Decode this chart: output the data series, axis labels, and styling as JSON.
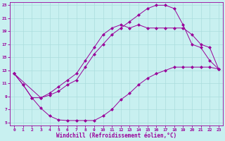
{
  "xlabel": "Windchill (Refroidissement éolien,°C)",
  "ylabel": "",
  "bg_color": "#c8f0f0",
  "line_color": "#990099",
  "grid_color": "#aadddd",
  "xlim": [
    -0.5,
    23.5
  ],
  "ylim": [
    4.5,
    23.5
  ],
  "xticks": [
    0,
    1,
    2,
    3,
    4,
    5,
    6,
    7,
    8,
    9,
    10,
    11,
    12,
    13,
    14,
    15,
    16,
    17,
    18,
    19,
    20,
    21,
    22,
    23
  ],
  "yticks": [
    5,
    7,
    9,
    11,
    13,
    15,
    17,
    19,
    21,
    23
  ],
  "series1_x": [
    0,
    1,
    2,
    3,
    4,
    5,
    6,
    7,
    8,
    9,
    10,
    11,
    12,
    13,
    14,
    15,
    16,
    17,
    18,
    19,
    20,
    21,
    22,
    23
  ],
  "series1_y": [
    12.5,
    10.8,
    8.8,
    7.2,
    6.0,
    5.4,
    5.3,
    5.3,
    5.3,
    5.3,
    6.0,
    7.0,
    8.5,
    9.5,
    10.8,
    11.8,
    12.5,
    13.0,
    13.5,
    13.5,
    13.5,
    13.5,
    13.5,
    13.2
  ],
  "series2_x": [
    0,
    1,
    2,
    3,
    4,
    5,
    6,
    7,
    8,
    9,
    10,
    11,
    12,
    13,
    14,
    15,
    16,
    17,
    18,
    19,
    20,
    21,
    22,
    23
  ],
  "series2_y": [
    12.5,
    10.8,
    8.8,
    8.8,
    9.2,
    9.8,
    10.8,
    11.5,
    13.5,
    15.5,
    17.0,
    18.5,
    19.5,
    20.5,
    21.5,
    22.5,
    23.0,
    23.0,
    22.5,
    20.0,
    17.0,
    16.5,
    14.5,
    13.2
  ],
  "series3_x": [
    0,
    3,
    4,
    5,
    6,
    7,
    8,
    9,
    10,
    11,
    12,
    13,
    14,
    15,
    16,
    17,
    18,
    19,
    20,
    21,
    22,
    23
  ],
  "series3_y": [
    12.5,
    8.8,
    9.5,
    10.5,
    11.5,
    12.5,
    14.5,
    16.5,
    18.5,
    19.5,
    20.0,
    19.5,
    20.0,
    19.5,
    19.5,
    19.5,
    19.5,
    19.5,
    18.5,
    17.0,
    16.5,
    13.2
  ]
}
